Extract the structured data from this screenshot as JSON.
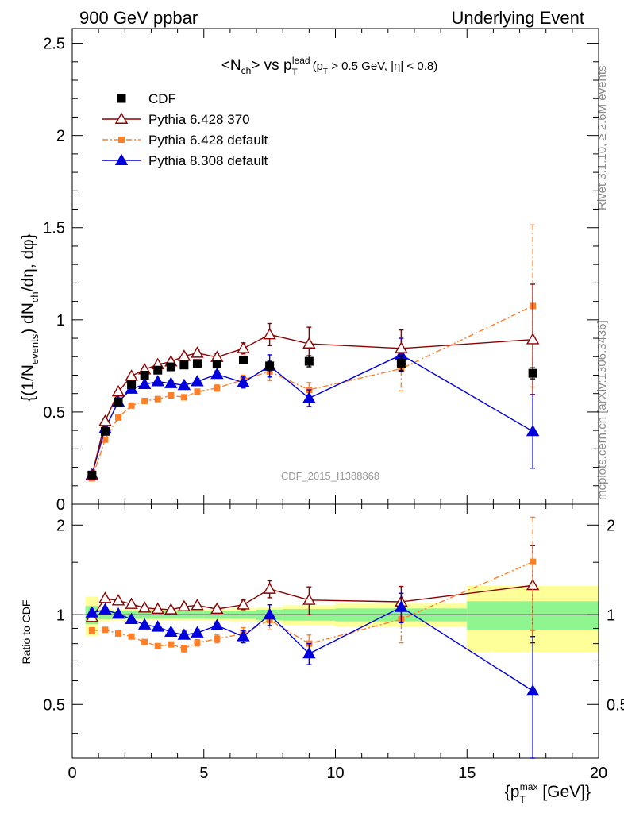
{
  "header": {
    "left": "900 GeV ppbar",
    "right": "Underlying Event"
  },
  "side_labels": {
    "rivet": "Rivet 3.1.10, ≥ 2.6M events",
    "mcplots": "mcplots.cern.ch [arXiv:1306.3436]"
  },
  "watermark": "CDF_2015_I1388868",
  "colors": {
    "CDF": "#000000",
    "Pythia 6.428 370": "#8b0000",
    "Pythia 6.428 default": "#ff7f27",
    "Pythia 8.308 default": "#0000dd",
    "band_inner": "#8ff58f",
    "band_outer": "#ffff9a"
  },
  "chart_data": [
    {
      "type": "scatter",
      "title": "<N_ch> vs p_T^lead (p_T > 0.5 GeV, |η| < 0.8)",
      "title_parts": {
        "main": "<N",
        "main_sub": "ch",
        "vs": "> vs p",
        "vs_sub": "T",
        "vs_sup": "lead",
        "cuts": "(p",
        "cuts_sub": "T",
        "cuts_rest": " > 0.5 GeV, |η| < 0.8)"
      },
      "ylabel": "{(1/N_events) dN_ch/dη, dφ}",
      "ylabel_parts": {
        "a": "{(1/N",
        "a_sub": "events",
        "b": ") dN",
        "b_sub": "ch",
        "c": "/dη, dφ}"
      },
      "xlim": [
        0,
        20
      ],
      "ylim": [
        0,
        2.58
      ],
      "yticks": [
        0,
        0.5,
        1,
        1.5,
        2,
        2.5
      ],
      "ytick_labels": [
        "0",
        "0.5",
        "1",
        "1.5",
        "2",
        "2.5"
      ],
      "legend": {
        "placement": "top-left"
      },
      "series": [
        {
          "name": "CDF",
          "marker": "square",
          "line": "none",
          "x": [
            0.75,
            1.25,
            1.75,
            2.25,
            2.75,
            3.25,
            3.75,
            4.25,
            4.75,
            5.5,
            6.5,
            7.5,
            9.0,
            12.5,
            17.5
          ],
          "y": [
            0.158,
            0.395,
            0.555,
            0.648,
            0.7,
            0.727,
            0.745,
            0.755,
            0.763,
            0.76,
            0.782,
            0.75,
            0.775,
            0.765,
            0.71
          ],
          "yerr": [
            0.005,
            0.005,
            0.005,
            0.006,
            0.007,
            0.008,
            0.008,
            0.01,
            0.011,
            0.013,
            0.018,
            0.025,
            0.03,
            0.04,
            0.03
          ]
        },
        {
          "name": "Pythia 6.428 370",
          "marker": "open-triangle",
          "line": "solid",
          "x": [
            0.75,
            1.25,
            1.75,
            2.25,
            2.75,
            3.25,
            3.75,
            4.25,
            4.75,
            5.5,
            6.5,
            7.5,
            9.0,
            12.5,
            17.5
          ],
          "y": [
            0.155,
            0.45,
            0.61,
            0.695,
            0.73,
            0.758,
            0.773,
            0.803,
            0.82,
            0.797,
            0.845,
            0.92,
            0.87,
            0.845,
            0.893
          ],
          "yerr": [
            0.005,
            0.008,
            0.01,
            0.012,
            0.012,
            0.013,
            0.015,
            0.017,
            0.018,
            0.02,
            0.03,
            0.06,
            0.09,
            0.1,
            0.3
          ]
        },
        {
          "name": "Pythia 6.428 default",
          "marker": "small-square",
          "line": "dashdot",
          "x": [
            0.75,
            1.25,
            1.75,
            2.25,
            2.75,
            3.25,
            3.75,
            4.25,
            4.75,
            5.5,
            6.5,
            7.5,
            9.0,
            12.5,
            17.5
          ],
          "y": [
            0.14,
            0.35,
            0.47,
            0.535,
            0.56,
            0.57,
            0.59,
            0.58,
            0.61,
            0.63,
            0.675,
            0.72,
            0.62,
            0.735,
            1.075
          ],
          "yerr": [
            0.004,
            0.006,
            0.008,
            0.009,
            0.01,
            0.011,
            0.012,
            0.013,
            0.014,
            0.017,
            0.025,
            0.05,
            0.04,
            0.12,
            0.44
          ]
        },
        {
          "name": "Pythia 8.308 default",
          "marker": "triangle",
          "line": "solid",
          "x": [
            0.75,
            1.25,
            1.75,
            2.25,
            2.75,
            3.25,
            3.75,
            4.25,
            4.75,
            5.5,
            6.5,
            7.5,
            9.0,
            12.5,
            17.5
          ],
          "y": [
            0.16,
            0.41,
            0.555,
            0.625,
            0.65,
            0.665,
            0.655,
            0.645,
            0.665,
            0.705,
            0.66,
            0.75,
            0.575,
            0.81,
            0.395
          ],
          "yerr": [
            0.005,
            0.007,
            0.009,
            0.01,
            0.011,
            0.012,
            0.013,
            0.014,
            0.016,
            0.018,
            0.03,
            0.06,
            0.045,
            0.09,
            0.2
          ]
        }
      ]
    },
    {
      "type": "scatter",
      "title": "",
      "xlabel": "{p_T^max [GeV]}",
      "xlabel_parts": {
        "a": "{p",
        "sub": "T",
        "sup": "max",
        "b": " [GeV]}"
      },
      "ylabel": "Ratio to CDF",
      "xlim": [
        0,
        20
      ],
      "ylim": [
        0.33,
        2.35
      ],
      "xticks": [
        0,
        5,
        10,
        15,
        20
      ],
      "xtick_labels": [
        "0",
        "5",
        "10",
        "15",
        "20"
      ],
      "yticks": [
        0.5,
        1,
        2
      ],
      "ytick_labels": [
        "0.5",
        "1",
        "2"
      ],
      "bands": {
        "x_edges": [
          0.5,
          1.0,
          1.5,
          2.0,
          2.5,
          3.0,
          3.5,
          4.0,
          4.5,
          5.0,
          6.0,
          7.0,
          8.0,
          10.0,
          15.0,
          20.0
        ],
        "inner": [
          0.07,
          0.035,
          0.03,
          0.03,
          0.03,
          0.03,
          0.03,
          0.03,
          0.03,
          0.03,
          0.03,
          0.04,
          0.045,
          0.05,
          0.11
        ],
        "outer": [
          0.15,
          0.05,
          0.045,
          0.04,
          0.04,
          0.04,
          0.04,
          0.04,
          0.04,
          0.045,
          0.05,
          0.06,
          0.075,
          0.09,
          0.25
        ]
      },
      "series": [
        {
          "name": "Pythia 6.428 370",
          "x": [
            0.75,
            1.25,
            1.75,
            2.25,
            2.75,
            3.25,
            3.75,
            4.25,
            4.75,
            5.5,
            6.5,
            7.5,
            9.0,
            12.5,
            17.5
          ],
          "y": [
            0.98,
            1.135,
            1.115,
            1.085,
            1.055,
            1.045,
            1.04,
            1.065,
            1.075,
            1.045,
            1.08,
            1.22,
            1.12,
            1.105,
            1.255
          ],
          "yerr": [
            0.03,
            0.02,
            0.02,
            0.02,
            0.02,
            0.02,
            0.02,
            0.025,
            0.025,
            0.025,
            0.04,
            0.08,
            0.12,
            0.14,
            0.45
          ]
        },
        {
          "name": "Pythia 6.428 default",
          "x": [
            0.75,
            1.25,
            1.75,
            2.25,
            2.75,
            3.25,
            3.75,
            4.25,
            4.75,
            5.5,
            6.5,
            7.5,
            9.0,
            12.5,
            17.5
          ],
          "y": [
            0.885,
            0.89,
            0.865,
            0.845,
            0.81,
            0.785,
            0.795,
            0.77,
            0.805,
            0.83,
            0.865,
            0.96,
            0.8,
            0.965,
            1.505
          ],
          "yerr": [
            0.02,
            0.015,
            0.015,
            0.015,
            0.015,
            0.015,
            0.015,
            0.02,
            0.02,
            0.025,
            0.04,
            0.07,
            0.055,
            0.16,
            0.62
          ]
        },
        {
          "name": "Pythia 8.308 default",
          "x": [
            0.75,
            1.25,
            1.75,
            2.25,
            2.75,
            3.25,
            3.75,
            4.25,
            4.75,
            5.5,
            6.5,
            7.5,
            9.0,
            12.5,
            17.5
          ],
          "y": [
            1.015,
            1.04,
            1.005,
            0.965,
            0.925,
            0.91,
            0.875,
            0.855,
            0.87,
            0.92,
            0.845,
            1.0,
            0.74,
            1.06,
            0.555
          ],
          "yerr": [
            0.03,
            0.02,
            0.02,
            0.02,
            0.02,
            0.02,
            0.02,
            0.025,
            0.025,
            0.025,
            0.04,
            0.08,
            0.06,
            0.12,
            0.29
          ]
        }
      ]
    }
  ]
}
